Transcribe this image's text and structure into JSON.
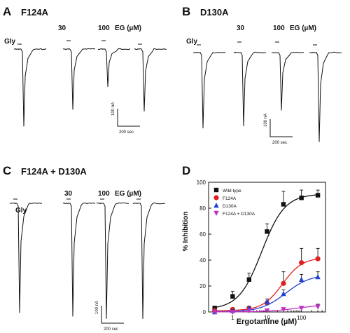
{
  "panels": {
    "A": {
      "letter": "A",
      "title": "F124A",
      "gly": "Gly",
      "dose30": "30",
      "dose100": "100",
      "eg": "EG (µM)",
      "scale_y": "100 nA",
      "scale_x": "200 sec",
      "traces": [
        {
          "amp": 0.92,
          "dose": "Gly"
        },
        {
          "amp": 0.72,
          "dose": "30"
        },
        {
          "amp": 0.45,
          "dose": "100"
        },
        {
          "amp": 0.74,
          "dose": "Gly"
        }
      ]
    },
    "B": {
      "letter": "B",
      "title": "D130A",
      "gly": "Gly",
      "dose30": "30",
      "dose100": "100",
      "eg": "EG (µM)",
      "scale_y": "100 nA",
      "scale_x": "200 sec",
      "traces": [
        {
          "amp": 0.72,
          "dose": "Gly"
        },
        {
          "amp": 0.7,
          "dose": "30"
        },
        {
          "amp": 0.55,
          "dose": "100"
        },
        {
          "amp": 0.85,
          "dose": "Gly"
        }
      ]
    },
    "C": {
      "letter": "C",
      "title": "F124A + D130A",
      "gly": "Gly",
      "dose30": "30",
      "dose100": "100",
      "eg": "EG (µM)",
      "scale_y": "100 nA",
      "scale_x": "200 sec",
      "traces": [
        {
          "amp": 0.92,
          "dose": "Gly"
        },
        {
          "amp": 0.95,
          "dose": "30"
        },
        {
          "amp": 0.97,
          "dose": "100"
        },
        {
          "amp": 0.97,
          "dose": "Gly"
        }
      ]
    },
    "D": {
      "letter": "D"
    }
  },
  "chart_data": {
    "type": "scatter",
    "title": "",
    "xlabel": "Ergotamine (µM)",
    "ylabel": "% Inhibition",
    "xscale": "log",
    "xlim": [
      0.2,
      500
    ],
    "ylim": [
      0,
      100
    ],
    "xticks": [
      1,
      10,
      100
    ],
    "yticks": [
      0,
      20,
      40,
      60,
      80,
      100
    ],
    "legend_position": "top-left",
    "grid": false,
    "series": [
      {
        "name": "Wild type",
        "marker": "square",
        "color": "#111111",
        "x": [
          0.3,
          1,
          3,
          10,
          30,
          100,
          300
        ],
        "y": [
          3,
          12,
          25,
          62,
          83,
          88,
          90
        ],
        "err": [
          1.5,
          4,
          5,
          6,
          10,
          6,
          4
        ],
        "fit": {
          "bottom": 2,
          "top": 91,
          "ec50": 7,
          "hill": 1.3
        }
      },
      {
        "name": "F124A",
        "marker": "circle",
        "color": "#e02020",
        "x": [
          0.3,
          1,
          3,
          10,
          30,
          100,
          300
        ],
        "y": [
          1,
          2,
          3,
          7,
          22,
          38,
          41
        ],
        "err": [
          0.5,
          1,
          1,
          3,
          9,
          11,
          8
        ],
        "fit": {
          "bottom": 1,
          "top": 42,
          "ec50": 28,
          "hill": 1.5
        }
      },
      {
        "name": "D130A",
        "marker": "triangle",
        "color": "#2040d0",
        "x": [
          0.3,
          1,
          3,
          10,
          30,
          100,
          300
        ],
        "y": [
          0,
          1,
          3,
          8,
          14,
          25,
          27
        ],
        "err": [
          0.5,
          1,
          1,
          2,
          3,
          4,
          4
        ],
        "fit": {
          "bottom": 0,
          "top": 29,
          "ec50": 35,
          "hill": 1.2
        }
      },
      {
        "name": "F124A + D130A",
        "marker": "triangle-down",
        "color": "#c030c0",
        "x": [
          0.3,
          1,
          3,
          10,
          30,
          100,
          300
        ],
        "y": [
          0,
          0,
          1,
          1,
          2,
          3,
          4
        ],
        "err": [
          0.5,
          0.5,
          0.5,
          1,
          1,
          1,
          2
        ],
        "fit": {
          "bottom": 0,
          "top": 6,
          "ec50": 80,
          "hill": 1.0
        }
      }
    ]
  }
}
